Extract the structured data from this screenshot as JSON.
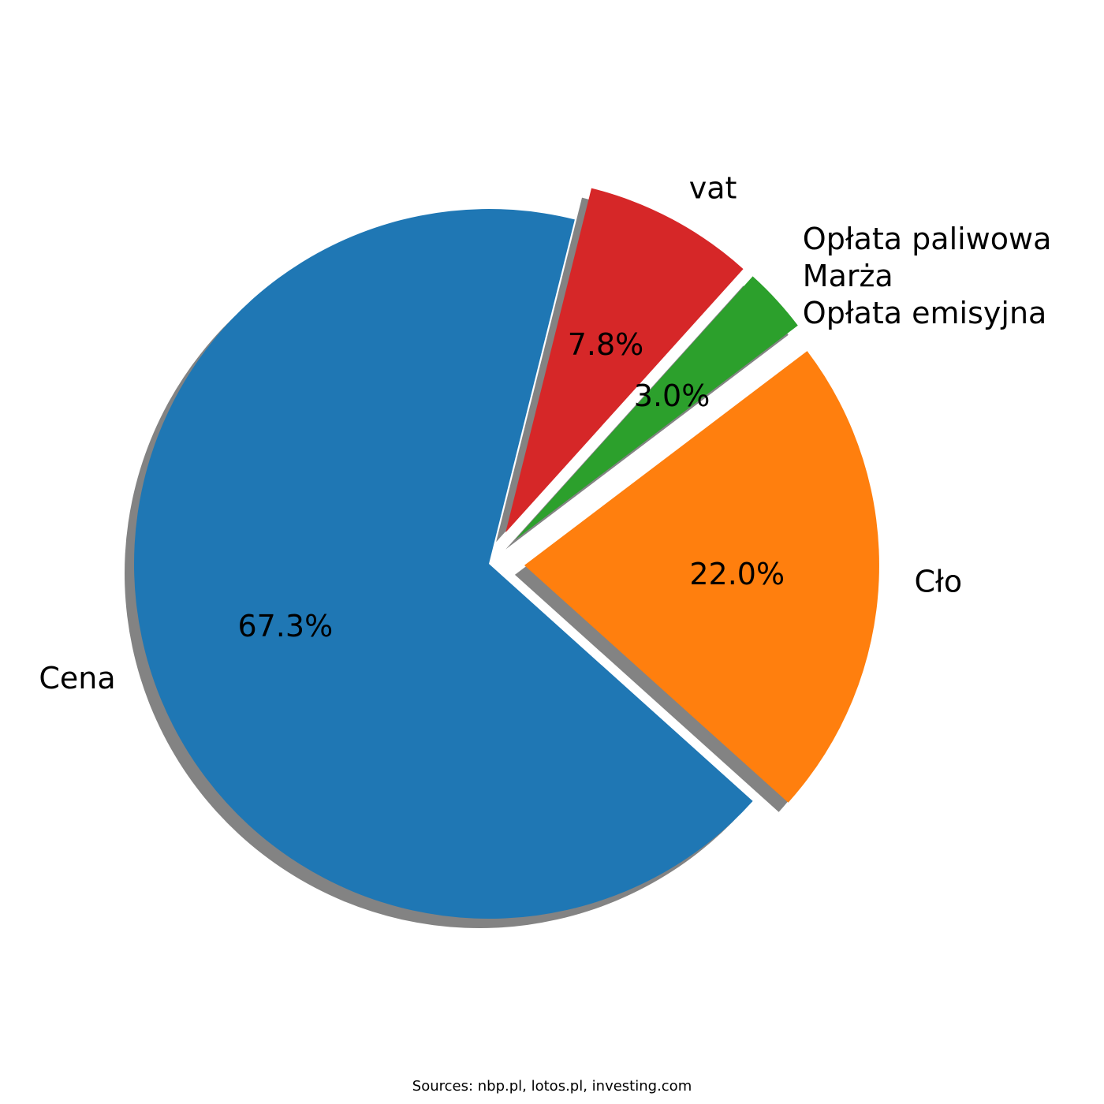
{
  "chart_data": {
    "type": "pie",
    "title": "",
    "slices": [
      {
        "label": "Cena",
        "value": 67.3,
        "pct_label": "67.3%",
        "color": "#1f77b4",
        "exploded": false
      },
      {
        "label": "Cło",
        "value": 22.0,
        "pct_label": "22.0%",
        "color": "#ff7f0e",
        "exploded": true
      },
      {
        "label": "Opłata paliwowa\nMarża\nOpłata emisyjna",
        "value": 3.0,
        "pct_label": "3.0%",
        "color": "#2ca02c",
        "exploded": true
      },
      {
        "label": "vat",
        "value": 7.8,
        "pct_label": "7.8%",
        "color": "#d62728",
        "exploded": true
      }
    ],
    "shadow": true,
    "legend": "none"
  },
  "footer": {
    "source_text": "Sources: nbp.pl, lotos.pl, investing.com"
  }
}
